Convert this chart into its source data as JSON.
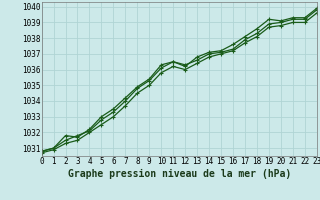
{
  "title": "Graphe pression niveau de la mer (hPa)",
  "background_color": "#cce9e9",
  "grid_color": "#b0d4d4",
  "line_color": "#1a5c1a",
  "x_min": 0,
  "x_max": 23,
  "y_min": 1030.5,
  "y_max": 1040.3,
  "yticks": [
    1031,
    1032,
    1033,
    1034,
    1035,
    1036,
    1037,
    1038,
    1039,
    1040
  ],
  "xticks": [
    0,
    1,
    2,
    3,
    4,
    5,
    6,
    7,
    8,
    9,
    10,
    11,
    12,
    13,
    14,
    15,
    16,
    17,
    18,
    19,
    20,
    21,
    22,
    23
  ],
  "line1_x": [
    0,
    1,
    2,
    3,
    4,
    5,
    6,
    7,
    8,
    9,
    10,
    11,
    12,
    13,
    14,
    15,
    16,
    17,
    18,
    19,
    20,
    21,
    22,
    23
  ],
  "line1_y": [
    1030.8,
    1031.0,
    1031.5,
    1031.8,
    1032.1,
    1032.8,
    1033.3,
    1034.0,
    1034.8,
    1035.3,
    1036.1,
    1036.5,
    1036.3,
    1036.6,
    1037.0,
    1037.1,
    1037.3,
    1037.9,
    1038.3,
    1038.9,
    1039.0,
    1039.2,
    1039.2,
    1039.8
  ],
  "line2_x": [
    0,
    1,
    2,
    3,
    4,
    5,
    6,
    7,
    8,
    9,
    10,
    11,
    12,
    13,
    14,
    15,
    16,
    17,
    18,
    19,
    20,
    21,
    22,
    23
  ],
  "line2_y": [
    1030.8,
    1031.0,
    1031.8,
    1031.7,
    1032.2,
    1033.0,
    1033.5,
    1034.2,
    1034.9,
    1035.4,
    1036.3,
    1036.5,
    1036.2,
    1036.8,
    1037.1,
    1037.2,
    1037.6,
    1038.1,
    1038.6,
    1039.2,
    1039.1,
    1039.3,
    1039.3,
    1039.9
  ],
  "line3_x": [
    0,
    1,
    2,
    3,
    4,
    5,
    6,
    7,
    8,
    9,
    10,
    11,
    12,
    13,
    14,
    15,
    16,
    17,
    18,
    19,
    20,
    21,
    22,
    23
  ],
  "line3_y": [
    1030.7,
    1030.9,
    1031.3,
    1031.5,
    1032.0,
    1032.5,
    1033.0,
    1033.7,
    1034.5,
    1035.0,
    1035.8,
    1036.2,
    1036.0,
    1036.4,
    1036.8,
    1037.0,
    1037.2,
    1037.7,
    1038.1,
    1038.7,
    1038.8,
    1039.0,
    1039.0,
    1039.6
  ],
  "tick_fontsize": 5.5,
  "label_fontsize": 7.0,
  "line_width": 0.9,
  "marker_size": 3.5
}
